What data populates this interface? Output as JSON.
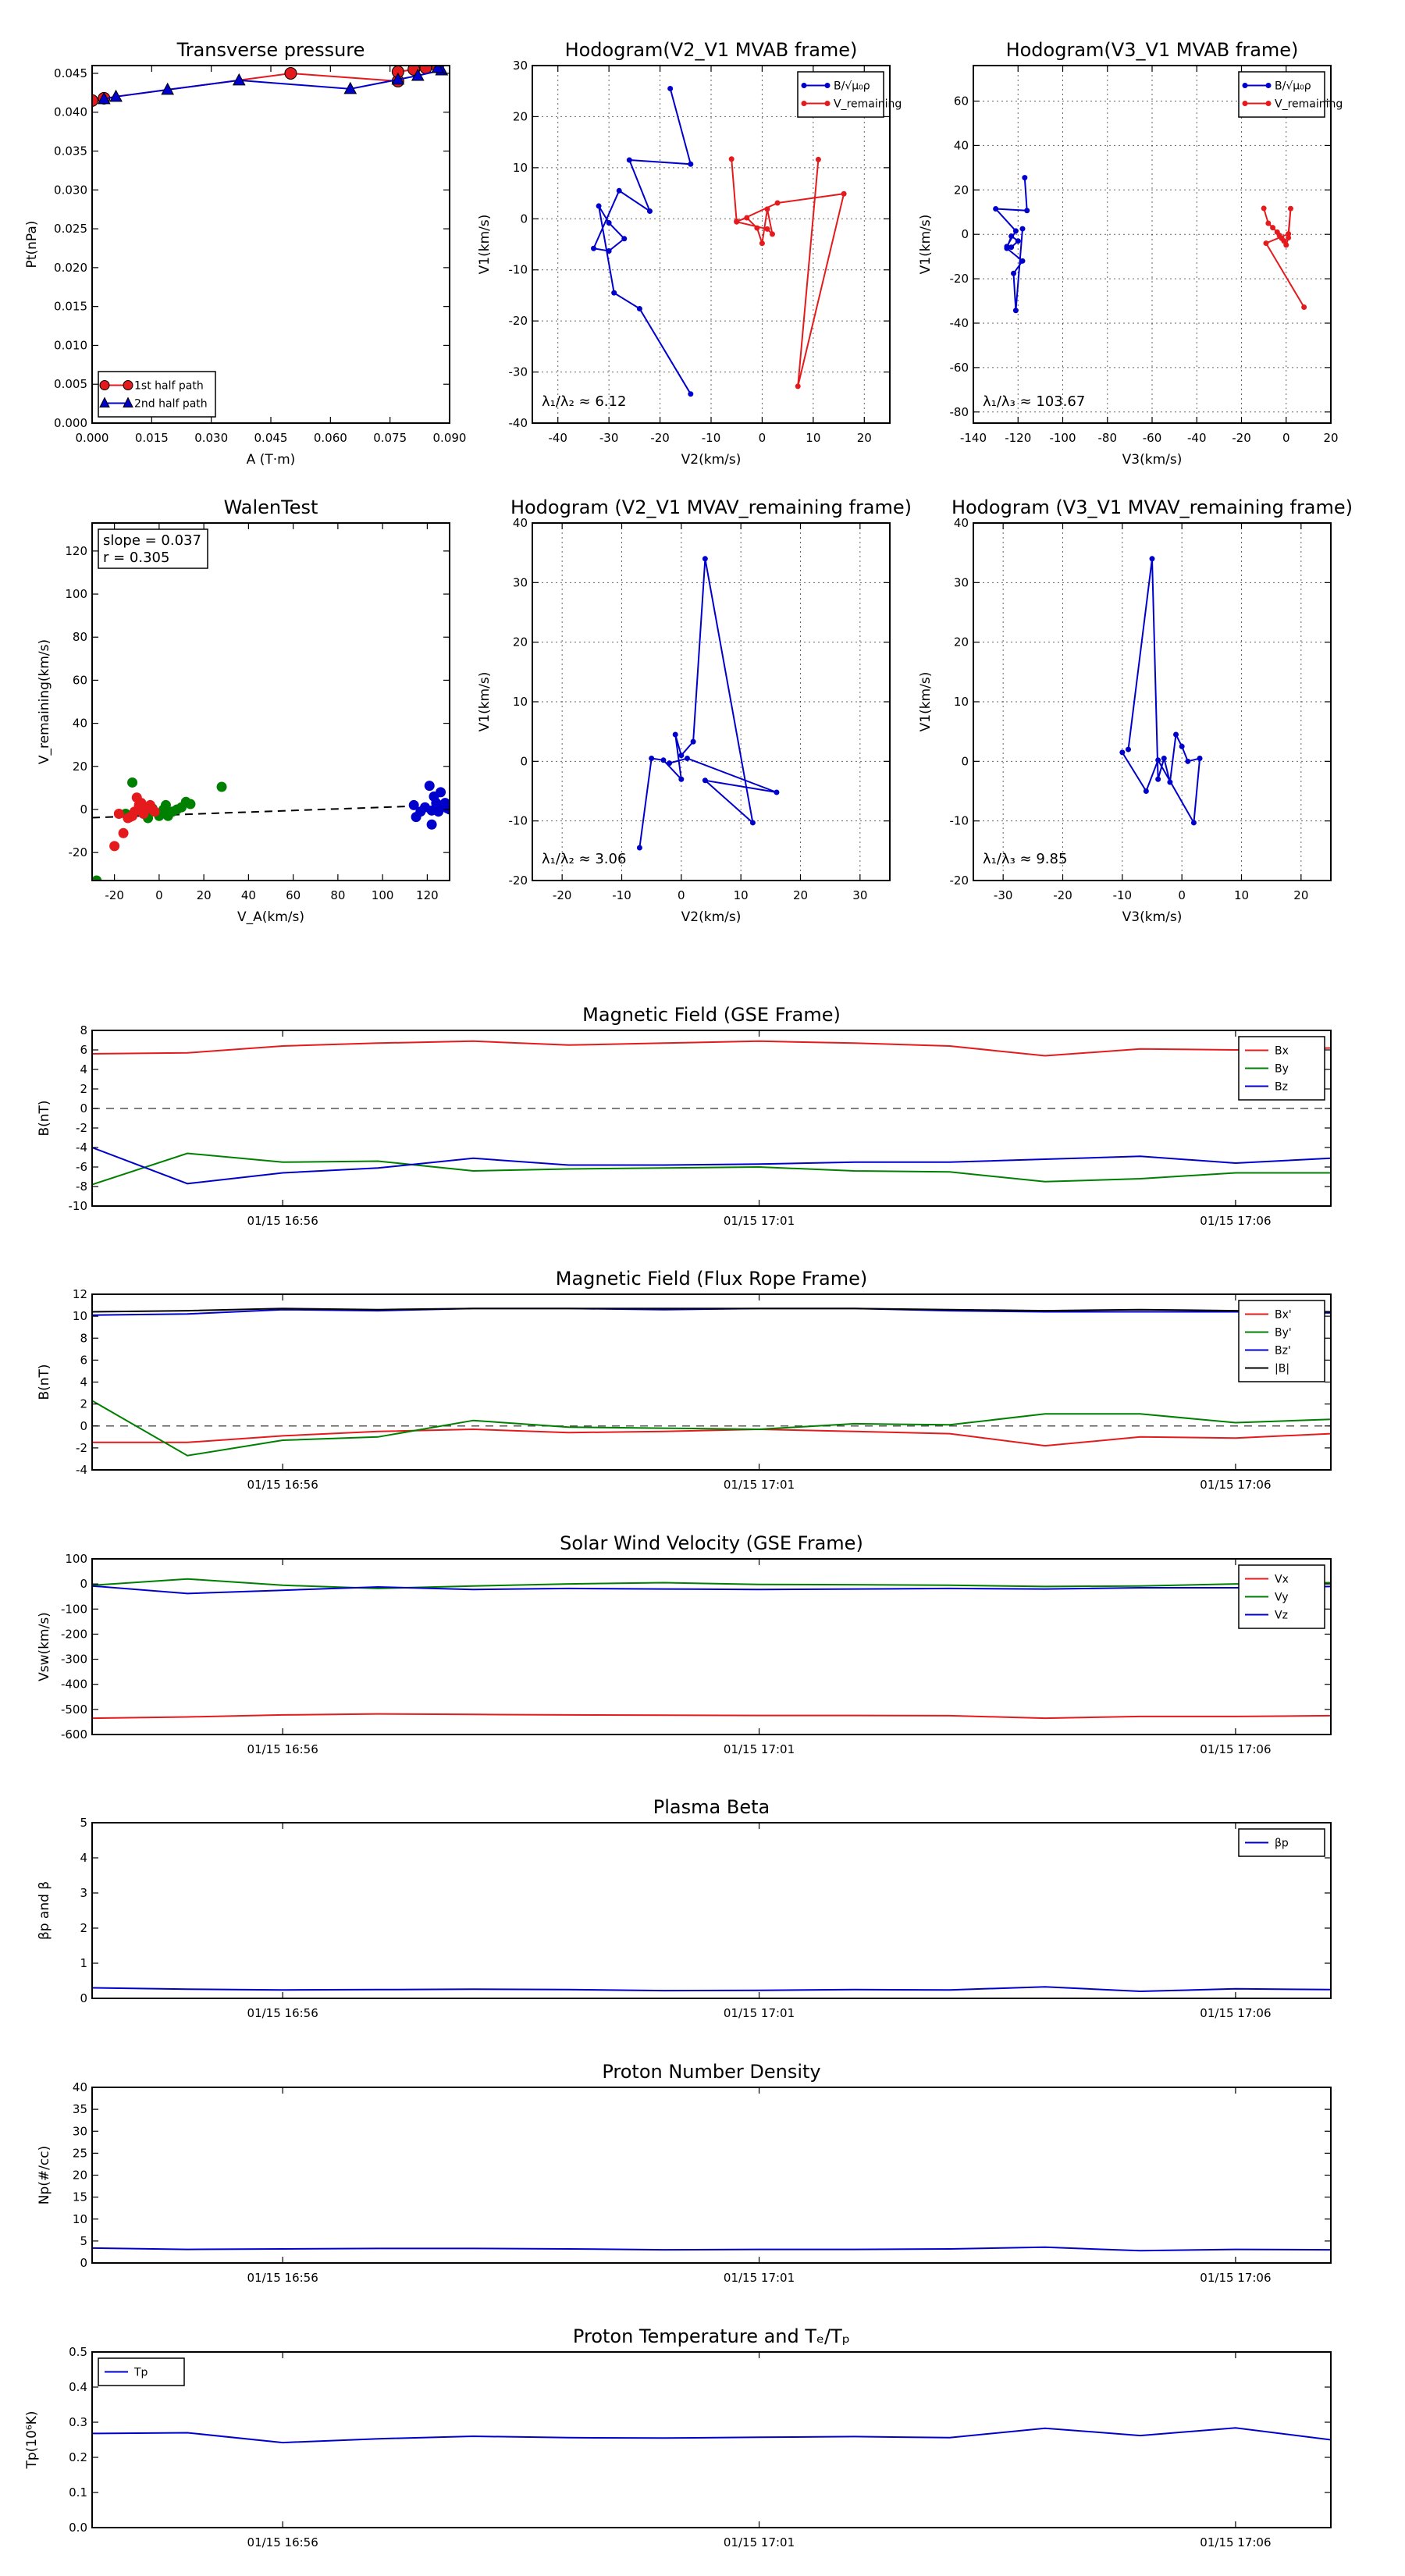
{
  "chart_data": [
    {
      "id": "tp",
      "type": "line",
      "title": "Transverse pressure",
      "xlabel": "A (T·m)",
      "ylabel": "Pt(nPa)",
      "xlim": [
        0,
        0.09
      ],
      "ylim": [
        0,
        0.046
      ],
      "xticks": [
        0.0,
        0.015,
        0.03,
        0.045,
        0.06,
        0.075,
        0.09
      ],
      "yticks": [
        0.0,
        0.005,
        0.01,
        0.015,
        0.02,
        0.025,
        0.03,
        0.035,
        0.04,
        0.045
      ],
      "grid": false,
      "legend_loc": "lower left",
      "series": [
        {
          "name": "1st half path",
          "color": "#e41a1c",
          "marker": "circle",
          "x": [
            0.0,
            0.003,
            0.05,
            0.077,
            0.077,
            0.081,
            0.084,
            0.087
          ],
          "y": [
            0.0415,
            0.0418,
            0.045,
            0.044,
            0.0452,
            0.0455,
            0.0457,
            0.0458
          ]
        },
        {
          "name": "2nd half path",
          "color": "#0000cc",
          "marker": "triangle",
          "x": [
            0.003,
            0.006,
            0.019,
            0.037,
            0.065,
            0.077,
            0.082,
            0.088,
            0.087
          ],
          "y": [
            0.0417,
            0.042,
            0.0429,
            0.0441,
            0.043,
            0.0442,
            0.0447,
            0.0454,
            0.0457
          ]
        }
      ]
    },
    {
      "id": "h1",
      "type": "line",
      "title": "Hodogram(V2_V1 MVAB frame)",
      "xlabel": "V2(km/s)",
      "ylabel": "V1(km/s)",
      "xlim": [
        -45,
        25
      ],
      "ylim": [
        -40,
        30
      ],
      "xticks": [
        -40,
        -30,
        -20,
        -10,
        0,
        10,
        20
      ],
      "yticks": [
        -40,
        -30,
        -20,
        -10,
        0,
        10,
        20,
        30
      ],
      "grid": true,
      "legend_loc": "upper right",
      "annotation": "λ₁/λ₂ ≈ 6.12",
      "series": [
        {
          "name": "B/√μ₀ρ",
          "color": "#0000cc",
          "marker": "dot",
          "x": [
            -18,
            -14,
            -26,
            -22,
            -28,
            -33,
            -30,
            -27,
            -30,
            -32,
            -29,
            -24,
            -14
          ],
          "y": [
            25.5,
            10.7,
            11.5,
            1.5,
            5.5,
            -5.8,
            -6.3,
            -3.9,
            -0.8,
            2.5,
            -14.5,
            -17.6,
            -34.3
          ]
        },
        {
          "name": "V_remaining",
          "color": "#e41a1c",
          "marker": "dot",
          "x": [
            -6,
            -5,
            -3,
            -1,
            0,
            1,
            2,
            1,
            -5,
            3,
            16,
            7,
            11
          ],
          "y": [
            11.7,
            -0.5,
            0.2,
            -1.8,
            -4.8,
            1.9,
            -3.0,
            -2.0,
            -0.6,
            3.1,
            4.9,
            -32.8,
            11.6
          ]
        }
      ]
    },
    {
      "id": "h2",
      "type": "line",
      "title": "Hodogram(V3_V1 MVAB frame)",
      "xlabel": "V3(km/s)",
      "ylabel": "V1(km/s)",
      "xlim": [
        -140,
        20
      ],
      "ylim": [
        -85,
        76
      ],
      "xticks": [
        -140,
        -120,
        -100,
        -80,
        -60,
        -40,
        -20,
        0,
        20
      ],
      "yticks": [
        -80,
        -60,
        -40,
        -20,
        0,
        20,
        40,
        60
      ],
      "grid": true,
      "legend_loc": "upper right",
      "annotation": "λ₁/λ₃ ≈ 103.67",
      "series": [
        {
          "name": "B/√μ₀ρ",
          "color": "#0000cc",
          "marker": "dot",
          "x": [
            -117,
            -116,
            -130,
            -121,
            -125,
            -123,
            -120,
            -123,
            -125,
            -118,
            -122,
            -121,
            -118
          ],
          "y": [
            25.5,
            10.7,
            11.5,
            1.5,
            -5.5,
            -5.8,
            -3.0,
            -0.8,
            -6.3,
            -12.0,
            -17.6,
            -34.3,
            2.5
          ]
        },
        {
          "name": "V_remaining",
          "color": "#e41a1c",
          "marker": "dot",
          "x": [
            -10,
            -8,
            -6,
            -4,
            -3,
            -2,
            -1,
            0,
            1,
            2,
            1,
            -9,
            8
          ],
          "y": [
            11.7,
            5.0,
            3.0,
            1.0,
            -0.5,
            -1.8,
            -3.0,
            -4.8,
            -1.5,
            11.6,
            0.2,
            -4.0,
            -32.8
          ]
        }
      ]
    },
    {
      "id": "walen",
      "type": "scatter",
      "title": "WalenTest",
      "xlabel": "V_A(km/s)",
      "ylabel": "V_remaining(km/s)",
      "xlim": [
        -30,
        130
      ],
      "ylim": [
        -33,
        133
      ],
      "xticks": [
        -20,
        0,
        20,
        40,
        60,
        80,
        100,
        120
      ],
      "yticks": [
        -20,
        0,
        20,
        40,
        60,
        80,
        100,
        120
      ],
      "grid": false,
      "annotations": [
        "slope = 0.037",
        "r = 0.305"
      ],
      "fit": {
        "slope": 0.037,
        "intercept": -2.7,
        "x": [
          -30,
          110
        ],
        "color": "#000000"
      },
      "series": [
        {
          "name": "green",
          "color": "#008000",
          "x": [
            -28,
            -12,
            -15,
            -5,
            -3,
            1,
            3,
            4,
            6,
            8,
            10,
            12,
            14,
            28,
            -6,
            0,
            2
          ],
          "y": [
            -33,
            12.5,
            -2,
            -4,
            0.5,
            -2,
            2,
            -3,
            -1,
            0,
            1,
            3.5,
            2.5,
            10.5,
            -1,
            -3,
            0
          ]
        },
        {
          "name": "red",
          "color": "#e41a1c",
          "x": [
            -20,
            -18,
            -16,
            -13,
            -11,
            -10,
            -9,
            -8,
            -7,
            -6,
            -5,
            -4,
            -3,
            -2,
            -12,
            -8,
            -14
          ],
          "y": [
            -17,
            -2,
            -11,
            -3.5,
            -1,
            5.5,
            2,
            3,
            -2,
            0.5,
            1,
            2,
            0,
            -1,
            -3,
            1,
            -4
          ]
        },
        {
          "name": "blue",
          "color": "#0000cc",
          "x": [
            114,
            115,
            117,
            119,
            121,
            122,
            123,
            124,
            125,
            126,
            127,
            128,
            129,
            130,
            122,
            124
          ],
          "y": [
            2,
            -3.5,
            -1,
            1,
            11,
            -7,
            6,
            3,
            -1,
            8,
            2,
            3,
            0.5,
            0,
            -0.5,
            0
          ]
        }
      ]
    },
    {
      "id": "h3",
      "type": "line",
      "title": "Hodogram (V2_V1 MVAV_remaining frame)",
      "xlabel": "V2(km/s)",
      "ylabel": "V1(km/s)",
      "xlim": [
        -25,
        35
      ],
      "ylim": [
        -20,
        40
      ],
      "xticks": [
        -20,
        -10,
        0,
        10,
        20,
        30
      ],
      "yticks": [
        -20,
        -10,
        0,
        10,
        20,
        30,
        40
      ],
      "grid": true,
      "annotation": "λ₁/λ₂ ≈ 3.06",
      "series": [
        {
          "name": "",
          "color": "#0000cc",
          "marker": "dot",
          "x": [
            -7,
            -5,
            -3,
            0,
            -1,
            0,
            2,
            4,
            12,
            4,
            16,
            1,
            -2
          ],
          "y": [
            -14.5,
            0.5,
            0.2,
            -3.0,
            4.5,
            1.0,
            3.3,
            34.0,
            -10.3,
            -3.2,
            -5.2,
            0.5,
            -0.3
          ]
        }
      ]
    },
    {
      "id": "h4",
      "type": "line",
      "title": "Hodogram (V3_V1 MVAV_remaining frame)",
      "xlabel": "V3(km/s)",
      "ylabel": "V1(km/s)",
      "xlim": [
        -35,
        25
      ],
      "ylim": [
        -20,
        40
      ],
      "xticks": [
        -30,
        -20,
        -10,
        0,
        10,
        20
      ],
      "yticks": [
        -20,
        -10,
        0,
        10,
        20,
        30,
        40
      ],
      "grid": true,
      "annotation": "λ₁/λ₃ ≈ 9.85",
      "series": [
        {
          "name": "",
          "color": "#0000cc",
          "marker": "dot",
          "x": [
            -9,
            -5,
            -4,
            -3,
            -2,
            -1,
            0,
            1,
            3,
            2,
            -4,
            -6,
            -10
          ],
          "y": [
            2,
            34,
            -3,
            0.5,
            -3.5,
            4.5,
            2.5,
            0,
            0.5,
            -10.3,
            0.2,
            -5.0,
            1.5
          ]
        }
      ]
    },
    {
      "id": "ts1",
      "type": "line",
      "title": "Magnetic Field (GSE Frame)",
      "ylabel": "B(nT)",
      "ylim": [
        -10,
        8
      ],
      "yticks": [
        -10,
        -8,
        -6,
        -4,
        -2,
        0,
        2,
        4,
        6,
        8
      ],
      "xlim": [
        0,
        13
      ],
      "xtick_pos": [
        2,
        7,
        12
      ],
      "xticklabels": [
        "01/15 16:56",
        "01/15 17:01",
        "01/15 17:06"
      ],
      "zero_line": true,
      "legend_loc": "upper right",
      "series": [
        {
          "name": "Bx",
          "color": "#e41a1c",
          "values": [
            5.6,
            5.7,
            6.4,
            6.7,
            6.9,
            6.5,
            6.7,
            6.9,
            6.7,
            6.4,
            5.4,
            6.1,
            6.0,
            6.2
          ]
        },
        {
          "name": "By",
          "color": "#008000",
          "values": [
            -7.8,
            -4.6,
            -5.5,
            -5.4,
            -6.4,
            -6.2,
            -6.1,
            -6.0,
            -6.4,
            -6.5,
            -7.5,
            -7.2,
            -6.6,
            -6.6
          ]
        },
        {
          "name": "Bz",
          "color": "#0000cc",
          "values": [
            -4.0,
            -7.7,
            -6.6,
            -6.1,
            -5.1,
            -5.8,
            -5.8,
            -5.7,
            -5.5,
            -5.5,
            -5.2,
            -4.9,
            -5.6,
            -5.1
          ]
        }
      ]
    },
    {
      "id": "ts2",
      "type": "line",
      "title": "Magnetic Field (Flux Rope Frame)",
      "ylabel": "B(nT)",
      "ylim": [
        -4,
        12
      ],
      "yticks": [
        -4,
        -2,
        0,
        2,
        4,
        6,
        8,
        10,
        12
      ],
      "xlim": [
        0,
        13
      ],
      "xtick_pos": [
        2,
        7,
        12
      ],
      "xticklabels": [
        "01/15 16:56",
        "01/15 17:01",
        "01/15 17:06"
      ],
      "zero_line": true,
      "legend_loc": "upper right",
      "series": [
        {
          "name": "Bx'",
          "color": "#e41a1c",
          "values": [
            -1.5,
            -1.5,
            -0.9,
            -0.5,
            -0.3,
            -0.6,
            -0.5,
            -0.3,
            -0.5,
            -0.7,
            -1.8,
            -1.0,
            -1.1,
            -0.7
          ]
        },
        {
          "name": "By'",
          "color": "#008000",
          "values": [
            2.3,
            -2.7,
            -1.3,
            -1.0,
            0.5,
            -0.1,
            -0.2,
            -0.3,
            0.2,
            0.1,
            1.1,
            1.1,
            0.3,
            0.6
          ]
        },
        {
          "name": "Bz'",
          "color": "#0000cc",
          "values": [
            10.1,
            10.2,
            10.6,
            10.5,
            10.7,
            10.7,
            10.6,
            10.7,
            10.7,
            10.5,
            10.4,
            10.4,
            10.4,
            10.3
          ]
        },
        {
          "name": "|B|",
          "color": "#000000",
          "values": [
            10.4,
            10.5,
            10.7,
            10.6,
            10.7,
            10.7,
            10.7,
            10.7,
            10.7,
            10.6,
            10.5,
            10.6,
            10.5,
            10.4
          ]
        }
      ]
    },
    {
      "id": "ts3",
      "type": "line",
      "title": "Solar Wind Velocity (GSE Frame)",
      "ylabel": "Vsw(km/s)",
      "ylim": [
        -600,
        100
      ],
      "yticks": [
        -600,
        -500,
        -400,
        -300,
        -200,
        -100,
        0,
        100
      ],
      "xlim": [
        0,
        13
      ],
      "xtick_pos": [
        2,
        7,
        12
      ],
      "xticklabels": [
        "01/15 16:56",
        "01/15 17:01",
        "01/15 17:06"
      ],
      "zero_line": false,
      "legend_loc": "upper right",
      "series": [
        {
          "name": "Vx",
          "color": "#e41a1c",
          "values": [
            -535,
            -530,
            -522,
            -518,
            -520,
            -522,
            -523,
            -524,
            -524,
            -525,
            -535,
            -528,
            -528,
            -525
          ]
        },
        {
          "name": "Vy",
          "color": "#008000",
          "values": [
            -5,
            20,
            -5,
            -18,
            -8,
            0,
            5,
            -2,
            -3,
            -5,
            -10,
            -8,
            0,
            5
          ]
        },
        {
          "name": "Vz",
          "color": "#0000cc",
          "values": [
            -8,
            -38,
            -25,
            -12,
            -22,
            -18,
            -20,
            -22,
            -20,
            -18,
            -20,
            -15,
            -15,
            -10
          ]
        }
      ]
    },
    {
      "id": "ts4",
      "type": "line",
      "title": "Plasma Beta",
      "ylabel": "βp and β",
      "ylim": [
        0,
        5
      ],
      "yticks": [
        0,
        1,
        2,
        3,
        4,
        5
      ],
      "xlim": [
        0,
        13
      ],
      "xtick_pos": [
        2,
        7,
        12
      ],
      "xticklabels": [
        "01/15 16:56",
        "01/15 17:01",
        "01/15 17:06"
      ],
      "zero_line": false,
      "legend_loc": "upper right",
      "series": [
        {
          "name": "βp",
          "color": "#0000cc",
          "values": [
            0.3,
            0.26,
            0.24,
            0.25,
            0.26,
            0.25,
            0.22,
            0.23,
            0.25,
            0.24,
            0.33,
            0.2,
            0.27,
            0.25
          ]
        }
      ]
    },
    {
      "id": "ts5",
      "type": "line",
      "title": "Proton Number Density",
      "ylabel": "Np(#/cc)",
      "ylim": [
        0,
        40
      ],
      "yticks": [
        0,
        5,
        10,
        15,
        20,
        25,
        30,
        35,
        40
      ],
      "xlim": [
        0,
        13
      ],
      "xtick_pos": [
        2,
        7,
        12
      ],
      "xticklabels": [
        "01/15 16:56",
        "01/15 17:01",
        "01/15 17:06"
      ],
      "zero_line": false,
      "series": [
        {
          "name": "",
          "color": "#0000cc",
          "values": [
            3.4,
            3.1,
            3.2,
            3.3,
            3.3,
            3.2,
            3.0,
            3.1,
            3.1,
            3.2,
            3.6,
            2.8,
            3.1,
            3.0
          ]
        }
      ]
    },
    {
      "id": "ts6",
      "type": "line",
      "title": "Proton Temperature and Tₑ/Tₚ",
      "ylabel": "Tp(10⁶K)",
      "ylim": [
        0,
        0.5
      ],
      "yticks": [
        0.0,
        0.1,
        0.2,
        0.3,
        0.4,
        0.5
      ],
      "xlim": [
        0,
        13
      ],
      "xtick_pos": [
        2,
        7,
        12
      ],
      "xticklabels": [
        "01/15 16:56",
        "01/15 17:01",
        "01/15 17:06"
      ],
      "zero_line": false,
      "legend_loc": "upper left",
      "series": [
        {
          "name": "Tp",
          "color": "#0000cc",
          "values": [
            0.268,
            0.27,
            0.242,
            0.253,
            0.26,
            0.256,
            0.255,
            0.257,
            0.259,
            0.256,
            0.283,
            0.262,
            0.284,
            0.25
          ]
        }
      ]
    }
  ]
}
